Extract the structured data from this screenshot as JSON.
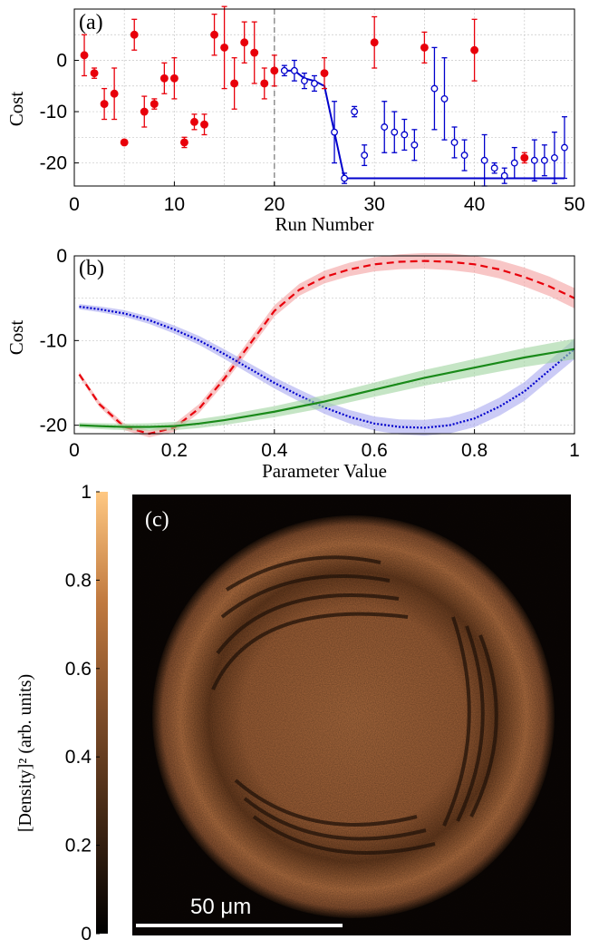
{
  "colors": {
    "red": "#e8000b",
    "blue": "#0000cc",
    "green": "#1a8a1a",
    "grid": "#c8c8c8",
    "dashed": "#808080"
  },
  "chart_data": [
    {
      "panel": "(a)",
      "type": "scatter",
      "xlabel": "Run Number",
      "ylabel": "Cost",
      "xlim": [
        0,
        50
      ],
      "ylim": [
        -24.5,
        10
      ],
      "xticks": [
        "0",
        "10",
        "20",
        "30",
        "40",
        "50"
      ],
      "yticks": [
        "0",
        "-10",
        "-20"
      ],
      "ytick_values": [
        0,
        -10,
        -20
      ],
      "xtick_values": [
        0,
        10,
        20,
        30,
        40,
        50
      ],
      "grid": true,
      "divider_x": 20,
      "series": [
        {
          "style": "red-filled",
          "x": [
            1,
            2,
            3,
            4,
            5,
            6,
            7,
            8,
            9,
            10,
            11,
            12,
            13,
            14,
            15,
            16,
            17,
            18,
            19,
            20,
            25,
            30,
            35,
            40,
            45
          ],
          "y": [
            1,
            -2.5,
            -8.5,
            -6.5,
            -16,
            5,
            -10,
            -8.5,
            -3.5,
            -3.5,
            -16,
            -12,
            -12.5,
            5,
            2.5,
            -4.5,
            3.5,
            1.5,
            -4.5,
            -2,
            -2.5,
            3.5,
            2.5,
            2,
            -19
          ],
          "err": [
            4,
            1,
            3,
            5,
            0,
            3,
            3,
            1,
            3,
            4,
            1,
            1.5,
            2,
            4,
            8,
            5,
            4,
            6,
            3,
            3,
            3,
            5,
            3,
            6,
            1
          ]
        },
        {
          "style": "blue-open",
          "x": [
            21,
            22,
            23,
            24,
            26,
            27,
            28,
            29,
            31,
            32,
            33,
            34,
            36,
            37,
            38,
            39,
            41,
            42,
            43,
            44,
            46,
            47,
            48,
            49
          ],
          "y": [
            -2,
            -2,
            -4,
            -4.5,
            -14,
            -23,
            -10,
            -18.5,
            -13,
            -14,
            -14.5,
            -16.5,
            -5.5,
            -7.5,
            -16,
            -18.5,
            -19.5,
            -21,
            -22.5,
            -20,
            -19.5,
            -19.5,
            -19,
            -17
          ],
          "err": [
            1,
            2,
            1.5,
            1.5,
            6,
            1,
            1,
            2,
            5,
            4,
            3,
            3,
            8,
            8,
            3,
            3,
            5,
            1,
            1.5,
            3,
            4,
            3,
            5,
            6
          ]
        }
      ],
      "fit_line": {
        "x": [
          21,
          22,
          23,
          24,
          25,
          26,
          27,
          49
        ],
        "y": [
          -2,
          -2,
          -3.5,
          -4,
          -5,
          -14,
          -23,
          -23
        ]
      }
    },
    {
      "panel": "(b)",
      "type": "line",
      "xlabel": "Parameter Value",
      "ylabel": "Cost",
      "xlim": [
        0,
        1
      ],
      "ylim": [
        -21,
        0
      ],
      "xticks": [
        "0",
        "0.2",
        "0.4",
        "0.6",
        "0.8",
        "1"
      ],
      "xtick_values": [
        0,
        0.2,
        0.4,
        0.6,
        0.8,
        1
      ],
      "yticks": [
        "0",
        "-10",
        "-20"
      ],
      "ytick_values": [
        0,
        -10,
        -20
      ],
      "grid": true,
      "series": [
        {
          "style": "red-dashed",
          "x": [
            0.01,
            0.05,
            0.1,
            0.15,
            0.2,
            0.25,
            0.3,
            0.35,
            0.4,
            0.45,
            0.5,
            0.55,
            0.6,
            0.65,
            0.7,
            0.75,
            0.8,
            0.85,
            0.9,
            0.95,
            1.0
          ],
          "y": [
            -14,
            -17.5,
            -20.2,
            -21,
            -20.3,
            -18,
            -14.5,
            -10.5,
            -6.5,
            -4,
            -2.5,
            -1.6,
            -1,
            -0.7,
            -0.6,
            -0.7,
            -1,
            -1.6,
            -2.5,
            -3.6,
            -5
          ]
        },
        {
          "style": "blue-dotted",
          "x": [
            0.01,
            0.05,
            0.1,
            0.15,
            0.2,
            0.25,
            0.3,
            0.35,
            0.4,
            0.45,
            0.5,
            0.55,
            0.6,
            0.65,
            0.7,
            0.75,
            0.8,
            0.85,
            0.9,
            0.95,
            1.0
          ],
          "y": [
            -6,
            -6.3,
            -6.8,
            -7.6,
            -8.7,
            -10,
            -11.6,
            -13.3,
            -15,
            -16.5,
            -17.9,
            -19,
            -19.8,
            -20.2,
            -20.3,
            -20,
            -19.2,
            -17.8,
            -16,
            -13.5,
            -11
          ]
        },
        {
          "style": "green-solid",
          "x": [
            0.01,
            0.05,
            0.1,
            0.15,
            0.2,
            0.25,
            0.3,
            0.35,
            0.4,
            0.45,
            0.5,
            0.55,
            0.6,
            0.65,
            0.7,
            0.75,
            0.8,
            0.85,
            0.9,
            0.95,
            1.0
          ],
          "y": [
            -20,
            -20.1,
            -20.2,
            -20.2,
            -20.1,
            -19.8,
            -19.4,
            -18.9,
            -18.4,
            -17.8,
            -17.2,
            -16.5,
            -15.8,
            -15.1,
            -14.4,
            -13.8,
            -13.2,
            -12.6,
            -12.0,
            -11.5,
            -11
          ]
        }
      ]
    },
    {
      "panel": "(c)",
      "type": "heatmap",
      "colorbar_label": "[Density]² (arb. units)",
      "colorbar_ticks": [
        "0",
        "0.2",
        "0.4",
        "0.6",
        "0.8",
        "1"
      ],
      "colorbar_tick_values": [
        0,
        0.2,
        0.4,
        0.6,
        0.8,
        1
      ],
      "scalebar_label": "50 μm"
    }
  ]
}
